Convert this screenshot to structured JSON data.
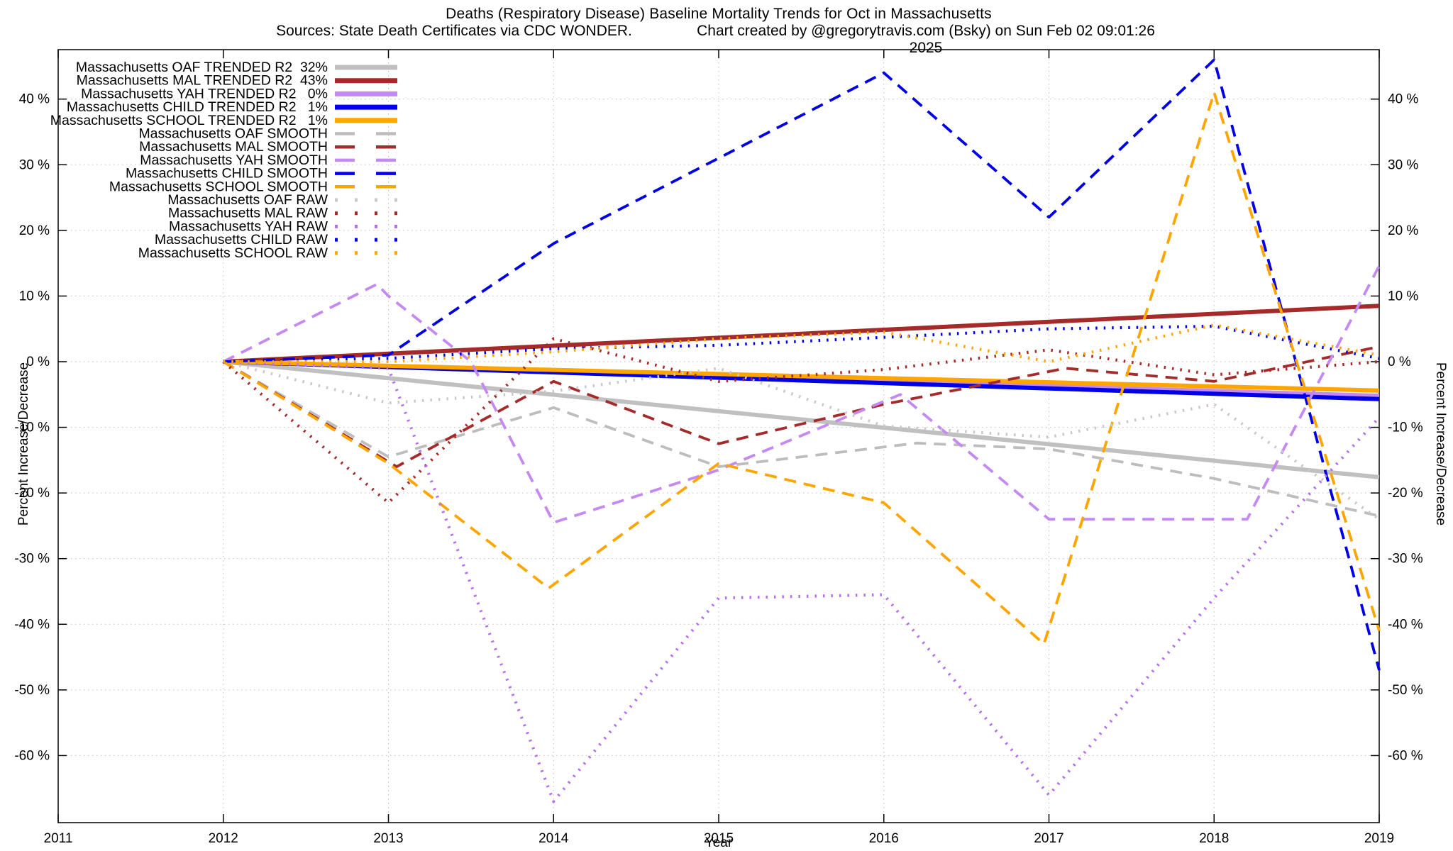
{
  "header": {
    "title": "Deaths (Respiratory Disease)  Baseline Mortality Trends for Oct in Massachusetts",
    "source_note": "Sources: State Death Certificates via CDC WONDER.",
    "credit_note": "Chart created by @gregorytravis.com (Bsky) on Sun Feb 02 09:01:26 2025"
  },
  "chart_data": {
    "type": "line",
    "title": "Deaths (Respiratory Disease)  Baseline Mortality Trends for Oct in Massachusetts",
    "xlabel": "Year",
    "ylabel": "Percent Increase/Decrease",
    "y2label": "Percent Increase/Decrease",
    "x_range": [
      2011,
      2019
    ],
    "y_range": [
      -70,
      47.5
    ],
    "x_ticks": [
      2011,
      2012,
      2013,
      2014,
      2015,
      2016,
      2017,
      2018,
      2019
    ],
    "y_tick_values": [
      40,
      30,
      20,
      10,
      0,
      -10,
      -20,
      -30,
      -40,
      -50,
      -60
    ],
    "y_tick_labels": [
      "40 %",
      "30 %",
      "20 %",
      "10 %",
      "0 %",
      "-10 %",
      "-20 %",
      "-30 %",
      "-40 %",
      "-50 %",
      "-60 %"
    ],
    "grid": true,
    "legend_position": "top-left",
    "series": [
      {
        "name": "ma-oaf-trended",
        "legend_label": "Massachusetts OAF TRENDED R2  32%",
        "style": "solid",
        "color": "#c0c0c0",
        "x": [
          2012,
          2019
        ],
        "y": [
          0,
          -17.6
        ]
      },
      {
        "name": "ma-mal-trended",
        "legend_label": "Massachusetts MAL TRENDED R2  43%",
        "style": "solid",
        "color": "#a52a2a",
        "x": [
          2012,
          2019
        ],
        "y": [
          0,
          8.5
        ]
      },
      {
        "name": "ma-yah-trended",
        "legend_label": "Massachusetts YAH TRENDED R2   0%",
        "style": "solid",
        "color": "#c489f2",
        "x": [
          2012,
          2019
        ],
        "y": [
          0,
          -5.2
        ]
      },
      {
        "name": "ma-child-trended",
        "legend_label": "Massachusetts CHILD TRENDED R2   1%",
        "style": "solid",
        "color": "#0000e6",
        "x": [
          2012,
          2019
        ],
        "y": [
          0,
          -5.7
        ]
      },
      {
        "name": "ma-school-trended",
        "legend_label": "Massachusetts SCHOOL TRENDED R2   1%",
        "style": "solid",
        "color": "#ffa500",
        "x": [
          2012,
          2019
        ],
        "y": [
          0,
          -4.4
        ]
      },
      {
        "name": "ma-oaf-smooth",
        "legend_label": "Massachusetts OAF SMOOTH",
        "style": "dashed",
        "color": "#bdbdbd",
        "x": [
          2012,
          2013,
          2014,
          2015,
          2016.2,
          2017,
          2018,
          2019
        ],
        "y": [
          0,
          -14.5,
          -7,
          -16,
          -12.4,
          -13.3,
          -17.8,
          -23.5
        ]
      },
      {
        "name": "ma-mal-smooth",
        "legend_label": "Massachusetts MAL SMOOTH",
        "style": "dashed",
        "color": "#a52a2a",
        "x": [
          2012,
          2013.05,
          2014,
          2015,
          2016,
          2017.1,
          2018,
          2019
        ],
        "y": [
          0,
          -16,
          -3,
          -12.5,
          -6.5,
          -1,
          -3,
          2.3
        ]
      },
      {
        "name": "ma-yah-smooth",
        "legend_label": "Massachusetts YAH SMOOTH",
        "style": "dashed",
        "color": "#c489f2",
        "x": [
          2012,
          2012.93,
          2013,
          2013.5,
          2014,
          2015,
          2016.1,
          2017,
          2018.2,
          2019
        ],
        "y": [
          0,
          11.8,
          10,
          0,
          -24.5,
          -16.5,
          -5,
          -24,
          -24,
          14.6
        ]
      },
      {
        "name": "ma-child-smooth",
        "legend_label": "Massachusetts CHILD SMOOTH",
        "style": "dashed",
        "color": "#0000e6",
        "x": [
          2012,
          2013,
          2014,
          2015,
          2016,
          2017,
          2018,
          2019
        ],
        "y": [
          0,
          1,
          18,
          31,
          44,
          22,
          46,
          -47
        ]
      },
      {
        "name": "ma-school-smooth",
        "legend_label": "Massachusetts SCHOOL SMOOTH",
        "style": "dashed",
        "color": "#ffa500",
        "x": [
          2012,
          2013,
          2013.97,
          2015,
          2016,
          2016.97,
          2018,
          2019
        ],
        "y": [
          0,
          -15.5,
          -34.5,
          -15.5,
          -21.5,
          -43,
          41,
          -41
        ]
      },
      {
        "name": "ma-oaf-raw",
        "legend_label": "Massachusetts OAF RAW",
        "style": "dotted",
        "color": "#c9c9c9",
        "x": [
          2012,
          2013,
          2014,
          2015,
          2016,
          2017,
          2018,
          2019
        ],
        "y": [
          0,
          -6.3,
          -4.5,
          -1,
          -9.8,
          -11.5,
          -6.5,
          -24
        ]
      },
      {
        "name": "ma-mal-raw",
        "legend_label": "Massachusetts MAL RAW",
        "style": "dotted",
        "color": "#a52a2a",
        "x": [
          2012,
          2013,
          2014,
          2015,
          2016,
          2017,
          2018,
          2019
        ],
        "y": [
          0,
          -21.5,
          3.5,
          -3,
          -1.2,
          1.8,
          -2,
          0
        ]
      },
      {
        "name": "ma-yah-raw",
        "legend_label": "Massachusetts YAH RAW",
        "style": "dotted",
        "color": "#b570f2",
        "x": [
          2012,
          2013,
          2014,
          2015,
          2016,
          2017,
          2018,
          2019
        ],
        "y": [
          0,
          -1,
          -67,
          -36,
          -35.5,
          -66,
          -36,
          -8.5
        ]
      },
      {
        "name": "ma-child-raw",
        "legend_label": "Massachusetts CHILD RAW",
        "style": "dotted",
        "color": "#0000e6",
        "x": [
          2012,
          2013,
          2014,
          2015,
          2016,
          2017,
          2018,
          2019
        ],
        "y": [
          0,
          0.5,
          2,
          2.5,
          3.7,
          5,
          5.4,
          0.5
        ]
      },
      {
        "name": "ma-school-raw",
        "legend_label": "Massachusetts SCHOOL RAW",
        "style": "dotted",
        "color": "#ffa500",
        "x": [
          2012,
          2013,
          2014,
          2015,
          2016,
          2017,
          2018,
          2019
        ],
        "y": [
          0,
          0,
          1.5,
          3.5,
          4.5,
          0,
          5.6,
          1
        ]
      }
    ]
  }
}
